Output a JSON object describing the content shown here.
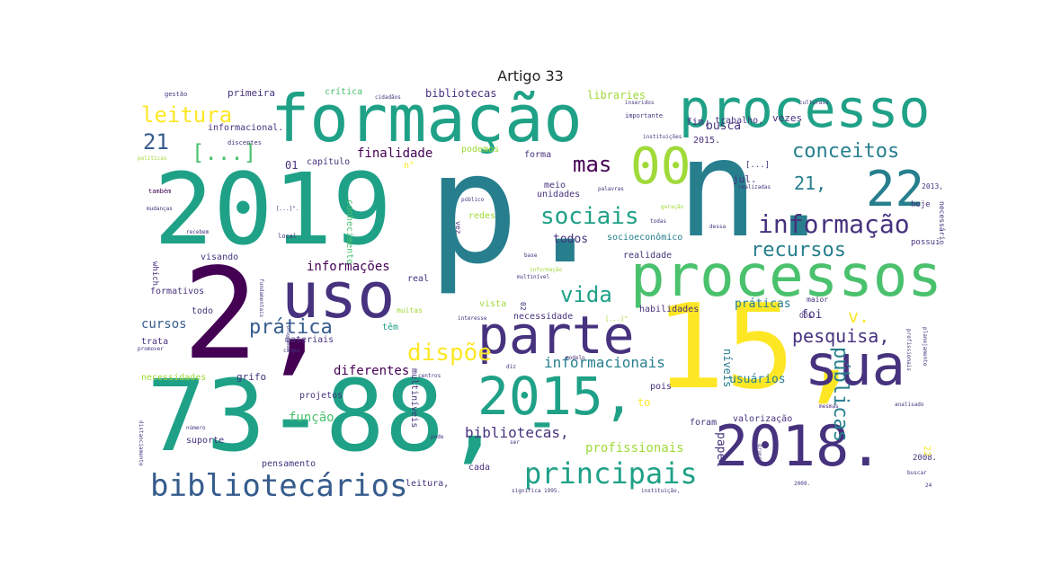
{
  "title": "Artigo 33",
  "palette": [
    "#440154",
    "#46327e",
    "#365c8d",
    "#277f8e",
    "#1fa187",
    "#4ac16d",
    "#a0da39",
    "#fde725"
  ],
  "words": [
    {
      "text": "p.",
      "color": "#277f8e"
    },
    {
      "text": "2019",
      "color": "#1fa187"
    },
    {
      "text": "2,",
      "color": "#440154"
    },
    {
      "text": "15,",
      "color": "#fde725"
    },
    {
      "text": "73-88,",
      "color": "#1fa187"
    },
    {
      "text": "n.",
      "color": "#277f8e"
    },
    {
      "text": "formação",
      "color": "#1fa187"
    },
    {
      "text": "processos",
      "color": "#4ac16d"
    },
    {
      "text": "processo",
      "color": "#1fa187"
    },
    {
      "text": "uso",
      "color": "#46327e"
    },
    {
      "text": "sua",
      "color": "#46327e"
    },
    {
      "text": "parte",
      "color": "#46327e"
    },
    {
      "text": "2015,",
      "color": "#1fa187"
    },
    {
      "text": "2018.",
      "color": "#46327e"
    },
    {
      "text": "-",
      "color": "#1fa187"
    },
    {
      "text": "00",
      "color": "#a0da39"
    },
    {
      "text": "22",
      "color": "#277f8e"
    },
    {
      "text": "bibliotecários",
      "color": "#365c8d"
    },
    {
      "text": "principais",
      "color": "#1fa187"
    },
    {
      "text": "informação",
      "color": "#46327e"
    },
    {
      "text": "sociais",
      "color": "#1fa187"
    },
    {
      "text": "conceitos",
      "color": "#277f8e"
    },
    {
      "text": "recursos",
      "color": "#277f8e"
    },
    {
      "text": "leitura",
      "color": "#fde725"
    },
    {
      "text": "vida",
      "color": "#1fa187"
    },
    {
      "text": "mas",
      "color": "#440154"
    },
    {
      "text": "dispõe",
      "color": "#fde725"
    },
    {
      "text": "prática",
      "color": "#365c8d"
    },
    {
      "text": "públicas",
      "color": "#277f8e"
    },
    {
      "text": "pesquisa,",
      "color": "#46327e"
    },
    {
      "text": "[...]",
      "color": "#4ac16d"
    },
    {
      "text": "21",
      "color": "#365c8d"
    },
    {
      "text": "21,",
      "color": "#277f8e"
    },
    {
      "text": "v.",
      "color": "#fde725"
    },
    {
      "text": "informacionais",
      "color": "#277f8e"
    },
    {
      "text": "bibliotecas,",
      "color": "#46327e"
    },
    {
      "text": "profissionais",
      "color": "#a0da39"
    },
    {
      "text": "informações",
      "color": "#440154"
    },
    {
      "text": "função",
      "color": "#4ac16d"
    },
    {
      "text": "diferentes",
      "color": "#440154"
    },
    {
      "text": "finalidade",
      "color": "#440154"
    },
    {
      "text": "práticas",
      "color": "#277f8e"
    },
    {
      "text": "usuários",
      "color": "#277f8e"
    },
    {
      "text": "cursos",
      "color": "#365c8d"
    },
    {
      "text": "busca",
      "color": "#46327e"
    },
    {
      "text": "papel",
      "color": "#46327e"
    },
    {
      "text": "níveis",
      "color": "#277f8e"
    },
    {
      "text": "foi",
      "color": "#46327e"
    },
    {
      "text": "todos",
      "color": "#46327e"
    },
    {
      "text": "primeira",
      "color": "#46327e"
    },
    {
      "text": "crítica",
      "color": "#4ac16d"
    },
    {
      "text": "bibliotecas",
      "color": "#46327e"
    },
    {
      "text": "libraries",
      "color": "#a0da39"
    },
    {
      "text": "fim,",
      "color": "#46327e"
    },
    {
      "text": "trabalho,",
      "color": "#46327e"
    },
    {
      "text": "vezes",
      "color": "#46327e"
    },
    {
      "text": "2015.",
      "color": "#46327e"
    },
    {
      "text": "informacional.",
      "color": "#46327e"
    },
    {
      "text": "01",
      "color": "#46327e"
    },
    {
      "text": "capítulo",
      "color": "#46327e"
    },
    {
      "text": "podemos",
      "color": "#a0da39"
    },
    {
      "text": "forma",
      "color": "#46327e"
    },
    {
      "text": "jul.",
      "color": "#46327e"
    },
    {
      "text": "meio",
      "color": "#46327e"
    },
    {
      "text": "unidades",
      "color": "#46327e"
    },
    {
      "text": "redes",
      "color": "#a0da39"
    },
    {
      "text": "conhecimento",
      "color": "#4ac16d"
    },
    {
      "text": "socioeconômico",
      "color": "#277f8e"
    },
    {
      "text": "realidade",
      "color": "#46327e"
    },
    {
      "text": "visando",
      "color": "#46327e"
    },
    {
      "text": "formativos",
      "color": "#46327e"
    },
    {
      "text": "todo",
      "color": "#46327e"
    },
    {
      "text": "trata",
      "color": "#46327e"
    },
    {
      "text": "real",
      "color": "#46327e"
    },
    {
      "text": "vista",
      "color": "#a0da39"
    },
    {
      "text": "necessidade",
      "color": "#46327e"
    },
    {
      "text": "habilidades",
      "color": "#46327e"
    },
    {
      "text": "têm",
      "color": "#1fa187"
    },
    {
      "text": "materiais",
      "color": "#46327e"
    },
    {
      "text": "necessidades",
      "color": "#a0da39"
    },
    {
      "text": "grifo",
      "color": "#46327e"
    },
    {
      "text": "projetos",
      "color": "#46327e"
    },
    {
      "text": "pois",
      "color": "#46327e"
    },
    {
      "text": "to",
      "color": "#fde725"
    },
    {
      "text": "suporte",
      "color": "#46327e"
    },
    {
      "text": "pensamento",
      "color": "#46327e"
    },
    {
      "text": "multiníveis",
      "color": "#46327e"
    },
    {
      "text": "leitura,",
      "color": "#46327e"
    },
    {
      "text": "foram",
      "color": "#46327e"
    },
    {
      "text": "valorização",
      "color": "#46327e"
    },
    {
      "text": "cada",
      "color": "#46327e"
    },
    {
      "text": "2008.",
      "color": "#46327e"
    },
    {
      "text": "22",
      "color": "#fde725"
    },
    {
      "text": "possui",
      "color": "#46327e"
    },
    {
      "text": "hoje",
      "color": "#46327e"
    },
    {
      "text": "2013,",
      "color": "#46327e"
    },
    {
      "text": "[...]",
      "color": "#46327e"
    },
    {
      "text": "n°",
      "color": "#fde725"
    },
    {
      "text": "necessário",
      "color": "#46327e"
    },
    {
      "text": "which",
      "color": "#46327e"
    },
    {
      "text": "gestão",
      "color": "#46327e"
    },
    {
      "text": "também",
      "color": "#440154"
    },
    {
      "text": "mudanças",
      "color": "#46327e"
    },
    {
      "text": "políticas",
      "color": "#a0da39"
    },
    {
      "text": "local",
      "color": "#46327e"
    },
    {
      "text": "discentes",
      "color": "#46327e"
    },
    {
      "text": "cidadãos",
      "color": "#46327e"
    },
    {
      "text": "informação",
      "color": "#a0da39"
    },
    {
      "text": "instituições",
      "color": "#46327e"
    },
    {
      "text": "importante",
      "color": "#46327e"
    },
    {
      "text": "inseridos",
      "color": "#46327e"
    },
    {
      "text": "culturais",
      "color": "#46327e"
    },
    {
      "text": "realizadas",
      "color": "#46327e"
    },
    {
      "text": "público",
      "color": "#46327e"
    },
    {
      "text": "geração",
      "color": "#a0da39"
    },
    {
      "text": "diz",
      "color": "#46327e"
    },
    {
      "text": "centros",
      "color": "#46327e"
    },
    {
      "text": "ser",
      "color": "#46327e"
    },
    {
      "text": "pode",
      "color": "#46327e"
    },
    {
      "text": "interesse",
      "color": "#46327e"
    },
    {
      "text": "programas",
      "color": "#46327e"
    },
    {
      "text": "número",
      "color": "#46327e"
    },
    {
      "text": "significa",
      "color": "#46327e"
    },
    {
      "text": "instituição,",
      "color": "#46327e"
    },
    {
      "text": "muitas",
      "color": "#a0da39"
    },
    {
      "text": "promover",
      "color": "#46327e"
    },
    {
      "text": "maior",
      "color": "#46327e"
    },
    {
      "text": "ODs",
      "color": "#46327e"
    },
    {
      "text": "modelo",
      "color": "#46327e"
    },
    {
      "text": "profissionais",
      "color": "#46327e"
    },
    {
      "text": "planejamento",
      "color": "#46327e"
    },
    {
      "text": "fundamentais",
      "color": "#46327e"
    },
    {
      "text": "distanciamento",
      "color": "#46327e"
    },
    {
      "text": "24",
      "color": "#46327e"
    },
    {
      "text": "2009.",
      "color": "#46327e"
    },
    {
      "text": "1995.",
      "color": "#46327e"
    },
    {
      "text": "base",
      "color": "#46327e"
    },
    {
      "text": "multinível",
      "color": "#46327e"
    },
    {
      "text": "recebem",
      "color": "#46327e"
    },
    {
      "text": "palavras",
      "color": "#46327e"
    },
    {
      "text": "todas",
      "color": "#46327e"
    },
    {
      "text": "dessa",
      "color": "#46327e"
    },
    {
      "text": "mesmas",
      "color": "#46327e"
    },
    {
      "text": "analisado",
      "color": "#46327e"
    },
    {
      "text": "[...]\"",
      "color": "#a0da39"
    },
    {
      "text": "[...]\".",
      "color": "#46327e"
    },
    {
      "text": "02",
      "color": "#46327e"
    },
    {
      "text": "vez",
      "color": "#46327e"
    },
    {
      "text": "campo",
      "color": "#46327e"
    },
    {
      "text": "buscar",
      "color": "#46327e"
    },
    {
      "text": "grupo",
      "color": "#46327e"
    }
  ]
}
